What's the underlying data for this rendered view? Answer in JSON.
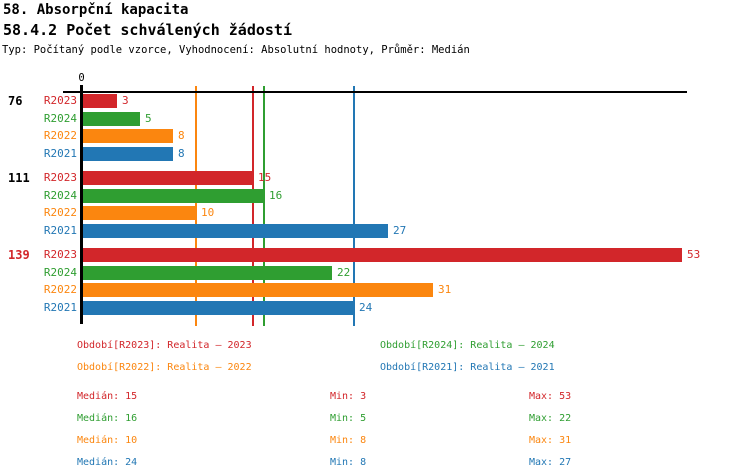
{
  "header": {
    "title": "58. Absorpční kapacita",
    "subtitle": "58.4.2 Počet schválených žádostí",
    "meta": "Typ: Počítaný podle vzorce, Vyhodnocení: Absolutní hodnoty, Průměr: Medián"
  },
  "chart_data": {
    "type": "bar",
    "orientation": "horizontal-grouped",
    "x_origin_label": "0",
    "xlim": [
      0,
      53
    ],
    "grid": false,
    "legend_position": "bottom",
    "categories": [
      "76",
      "111",
      "139"
    ],
    "category_colors": [
      "#000000",
      "#000000",
      "#d2262a"
    ],
    "series": [
      {
        "name": "R2023",
        "color": "#d2262a",
        "values": [
          3,
          15,
          53
        ],
        "median": 15,
        "min": 3,
        "max": 53,
        "legend": "Období[R2023]: Realita – 2023"
      },
      {
        "name": "R2024",
        "color": "#2f9e31",
        "values": [
          5,
          16,
          22
        ],
        "median": 16,
        "min": 5,
        "max": 22,
        "legend": "Období[R2024]: Realita – 2024"
      },
      {
        "name": "R2022",
        "color": "#fb860f",
        "values": [
          8,
          10,
          31
        ],
        "median": 10,
        "min": 8,
        "max": 31,
        "legend": "Období[R2022]: Realita – 2022"
      },
      {
        "name": "R2021",
        "color": "#2277b4",
        "values": [
          8,
          27,
          24
        ],
        "median": 24,
        "min": 8,
        "max": 27,
        "legend": "Období[R2021]: Realita – 2021"
      }
    ],
    "median_lines": {
      "R2023": 15,
      "R2024": 16,
      "R2022": 10,
      "R2021": 24
    }
  },
  "stats_labels": {
    "median": "Medián",
    "min": "Min",
    "max": "Max"
  }
}
